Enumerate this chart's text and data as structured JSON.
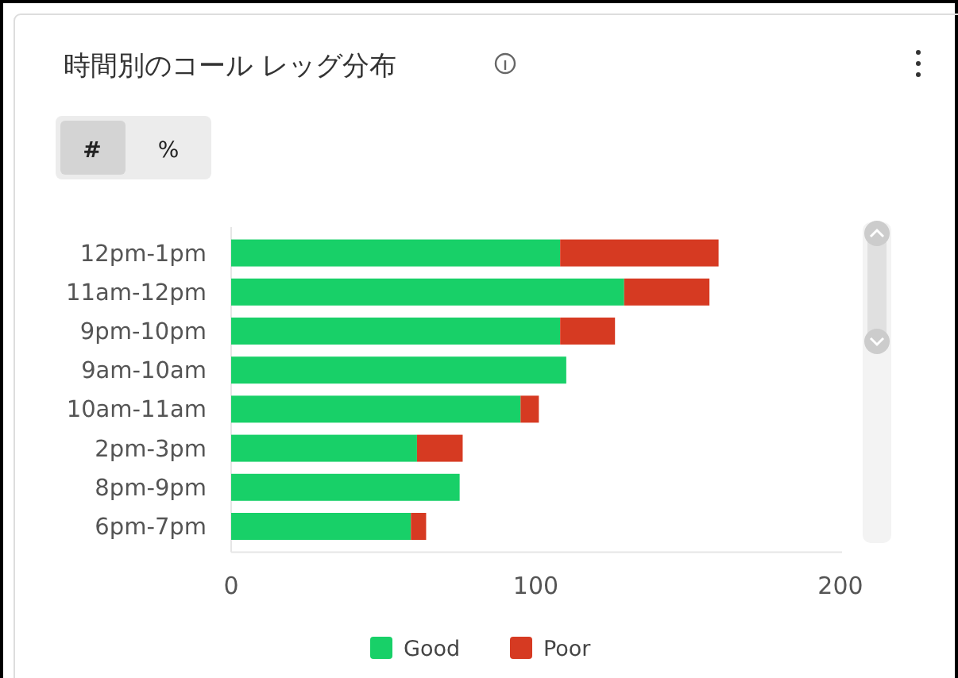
{
  "chart_data": {
    "type": "bar",
    "orientation": "horizontal",
    "stacked": true,
    "title": "時間別のコール レッグ分布",
    "categories": [
      "12pm-1pm",
      "11am-12pm",
      "9pm-10pm",
      "9am-10am",
      "10am-11am",
      "2pm-3pm",
      "8pm-9pm",
      "6pm-7pm"
    ],
    "series": [
      {
        "name": "Good",
        "color": "#18d068",
        "values": [
          108,
          129,
          108,
          110,
          95,
          61,
          75,
          59
        ]
      },
      {
        "name": "Poor",
        "color": "#d63a22",
        "values": [
          52,
          28,
          18,
          0,
          6,
          15,
          0,
          5
        ]
      }
    ],
    "xlim": [
      0,
      200
    ],
    "xticks": [
      0,
      100,
      200
    ],
    "grid": false,
    "legend": "bottom",
    "annotations": [
      "#",
      "%"
    ]
  }
}
